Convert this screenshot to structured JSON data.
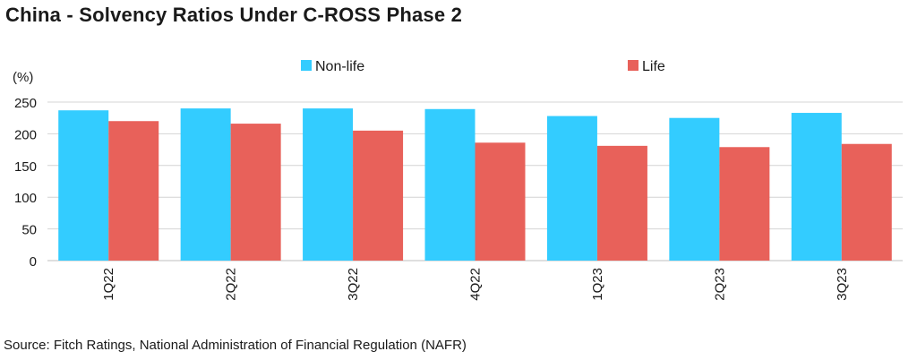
{
  "chart_data": {
    "type": "bar",
    "title": "China - Solvency Ratios Under C-ROSS Phase 2",
    "ylabel": "(%)",
    "xlabel": "",
    "categories": [
      "1Q22",
      "2Q22",
      "3Q22",
      "4Q22",
      "1Q23",
      "2Q23",
      "3Q23"
    ],
    "series": [
      {
        "name": "Non-life",
        "color": "#33ccff",
        "values": [
          237,
          240,
          240,
          239,
          228,
          225,
          233
        ]
      },
      {
        "name": "Life",
        "color": "#e8615a",
        "values": [
          220,
          216,
          205,
          186,
          181,
          179,
          184
        ]
      }
    ],
    "ylim": [
      0,
      250
    ],
    "yticks": [
      0,
      50,
      100,
      150,
      200,
      250
    ],
    "grid": true,
    "legend": "top"
  },
  "source": "Source: Fitch Ratings, National Administration of Financial Regulation (NAFR)"
}
